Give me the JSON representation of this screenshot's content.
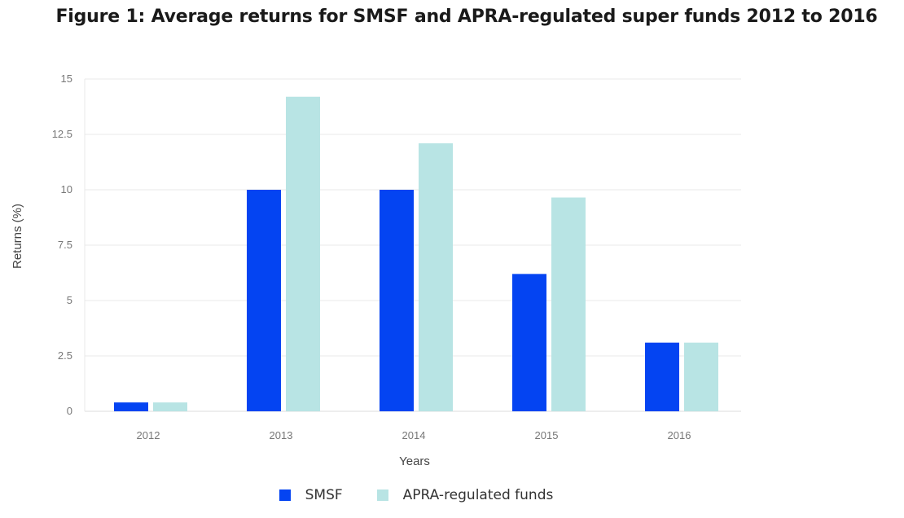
{
  "chart_data": {
    "type": "bar",
    "title": "Figure 1: Average returns for SMSF and APRA-regulated super funds 2012 to 2016",
    "xlabel": "Years",
    "ylabel": "Returns (%)",
    "categories": [
      "2012",
      "2013",
      "2014",
      "2015",
      "2016"
    ],
    "yticks": [
      "0",
      "2.5",
      "5",
      "7.5",
      "10",
      "12.5",
      "15"
    ],
    "ylim": [
      0,
      15
    ],
    "grid": true,
    "legend_position": "bottom",
    "series": [
      {
        "name": "SMSF",
        "color": "#0444f2",
        "values": [
          0.4,
          10.0,
          10.0,
          6.2,
          3.1
        ]
      },
      {
        "name": "APRA-regulated funds",
        "color": "#b8e4e4",
        "values": [
          0.4,
          14.2,
          12.1,
          9.65,
          3.1
        ]
      }
    ]
  }
}
